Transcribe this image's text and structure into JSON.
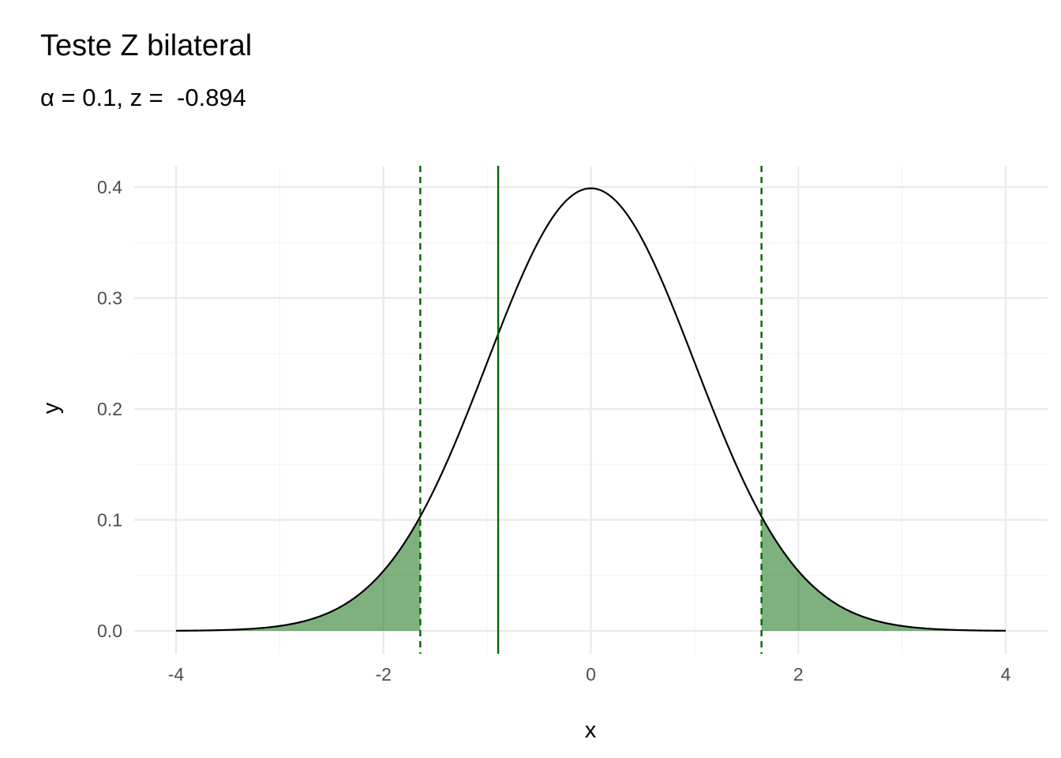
{
  "chart_data": {
    "type": "area",
    "title": "Teste Z bilateral",
    "subtitle": "α = 0.1, z =  -0.894",
    "xlabel": "x",
    "ylabel": "y",
    "xlim": [
      -4,
      4
    ],
    "ylim": [
      0,
      0.4
    ],
    "x_ticks": [
      -4,
      -2,
      0,
      2,
      4
    ],
    "x_tick_labels": [
      "-4",
      "-2",
      "0",
      "2",
      "4"
    ],
    "y_ticks": [
      0.0,
      0.1,
      0.2,
      0.3,
      0.4
    ],
    "y_tick_labels": [
      "0.0",
      "0.1",
      "0.2",
      "0.3",
      "0.4"
    ],
    "grid": true,
    "distribution": "standard normal density",
    "alpha": 0.1,
    "z_statistic": -0.894,
    "critical_values": [
      -1.645,
      1.645
    ],
    "rejection_regions": [
      [
        -4,
        -1.645
      ],
      [
        1.645,
        4
      ]
    ],
    "colors": {
      "curve": "#000000",
      "fill": "#006400",
      "fill_opacity": 0.5,
      "critical_line": "#006400",
      "z_line": "#006400",
      "grid_major": "#ebebeb",
      "grid_minor": "#f4f4f4"
    }
  }
}
